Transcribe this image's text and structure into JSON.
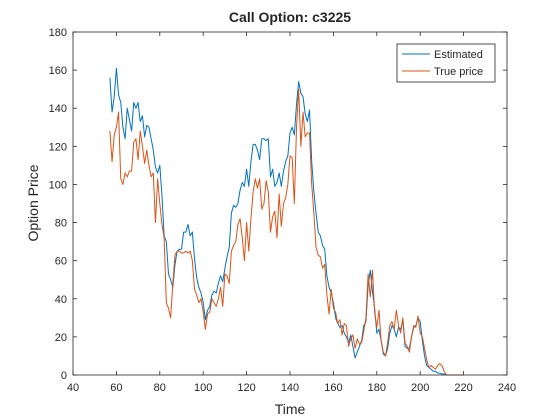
{
  "chart_data": {
    "type": "line",
    "title": "Call Option: c3225",
    "xlabel": "Time",
    "ylabel": "Option Price",
    "xlim": [
      40,
      240
    ],
    "ylim": [
      0,
      180
    ],
    "xticks": [
      40,
      60,
      80,
      100,
      120,
      140,
      160,
      180,
      200,
      220,
      240
    ],
    "yticks": [
      0,
      20,
      40,
      60,
      80,
      100,
      120,
      140,
      160,
      180
    ],
    "grid": false,
    "legend_position": "top-right",
    "series": [
      {
        "name": "Estimated",
        "color": "#0072BD",
        "points": [
          [
            57,
            156
          ],
          [
            58,
            138
          ],
          [
            59,
            146
          ],
          [
            60,
            161
          ],
          [
            61,
            147
          ],
          [
            62,
            143
          ],
          [
            63,
            130
          ],
          [
            64,
            124
          ],
          [
            65,
            140
          ],
          [
            66,
            134
          ],
          [
            67,
            128
          ],
          [
            68,
            143
          ],
          [
            69,
            140
          ],
          [
            70,
            143
          ],
          [
            71,
            133
          ],
          [
            72,
            136
          ],
          [
            73,
            125
          ],
          [
            74,
            131
          ],
          [
            75,
            130
          ],
          [
            76,
            124
          ],
          [
            77,
            118
          ],
          [
            78,
            109
          ],
          [
            79,
            106
          ],
          [
            80,
            110
          ],
          [
            81,
            94
          ],
          [
            82,
            73
          ],
          [
            83,
            70
          ],
          [
            84,
            53
          ],
          [
            85,
            50
          ],
          [
            86,
            46
          ],
          [
            87,
            58
          ],
          [
            88,
            65
          ],
          [
            89,
            66
          ],
          [
            90,
            66
          ],
          [
            91,
            75
          ],
          [
            92,
            75
          ],
          [
            93,
            79
          ],
          [
            94,
            73
          ],
          [
            95,
            75
          ],
          [
            96,
            61
          ],
          [
            97,
            51
          ],
          [
            98,
            46
          ],
          [
            99,
            43
          ],
          [
            100,
            38
          ],
          [
            101,
            29
          ],
          [
            102,
            34
          ],
          [
            103,
            36
          ],
          [
            104,
            42
          ],
          [
            105,
            44
          ],
          [
            106,
            43
          ],
          [
            107,
            48
          ],
          [
            108,
            52
          ],
          [
            109,
            49
          ],
          [
            110,
            56
          ],
          [
            111,
            62
          ],
          [
            112,
            67
          ],
          [
            113,
            85
          ],
          [
            114,
            89
          ],
          [
            115,
            88
          ],
          [
            116,
            90
          ],
          [
            117,
            97
          ],
          [
            118,
            101
          ],
          [
            119,
            99
          ],
          [
            120,
            108
          ],
          [
            121,
            99
          ],
          [
            122,
            112
          ],
          [
            123,
            121
          ],
          [
            124,
            121
          ],
          [
            125,
            118
          ],
          [
            126,
            113
          ],
          [
            127,
            124
          ],
          [
            128,
            124
          ],
          [
            129,
            123
          ],
          [
            130,
            124
          ],
          [
            131,
            104
          ],
          [
            132,
            108
          ],
          [
            133,
            99
          ],
          [
            134,
            101
          ],
          [
            135,
            106
          ],
          [
            136,
            99
          ],
          [
            137,
            107
          ],
          [
            138,
            112
          ],
          [
            139,
            115
          ],
          [
            140,
            127
          ],
          [
            141,
            130
          ],
          [
            142,
            126
          ],
          [
            143,
            142
          ],
          [
            144,
            154
          ],
          [
            145,
            148
          ],
          [
            146,
            146
          ],
          [
            147,
            137
          ],
          [
            148,
            133
          ],
          [
            149,
            139
          ],
          [
            150,
            112
          ],
          [
            151,
            96
          ],
          [
            152,
            85
          ],
          [
            153,
            75
          ],
          [
            154,
            73
          ],
          [
            155,
            68
          ],
          [
            156,
            66
          ],
          [
            157,
            52
          ],
          [
            158,
            46
          ],
          [
            159,
            43
          ],
          [
            160,
            38
          ],
          [
            161,
            30
          ],
          [
            162,
            27
          ],
          [
            163,
            25
          ],
          [
            164,
            26
          ],
          [
            165,
            22
          ],
          [
            166,
            20
          ],
          [
            167,
            17
          ],
          [
            168,
            21
          ],
          [
            169,
            15
          ],
          [
            170,
            9
          ],
          [
            171,
            12
          ],
          [
            172,
            15
          ],
          [
            173,
            18
          ],
          [
            174,
            26
          ],
          [
            175,
            28
          ],
          [
            176,
            47
          ],
          [
            177,
            55
          ],
          [
            178,
            44
          ],
          [
            179,
            35
          ],
          [
            180,
            22
          ],
          [
            181,
            24
          ],
          [
            182,
            18
          ],
          [
            183,
            11
          ],
          [
            184,
            10
          ],
          [
            185,
            14
          ],
          [
            186,
            22
          ],
          [
            187,
            26
          ],
          [
            188,
            24
          ],
          [
            189,
            20
          ],
          [
            190,
            25
          ],
          [
            191,
            24
          ],
          [
            192,
            29
          ],
          [
            193,
            15
          ],
          [
            194,
            14
          ],
          [
            195,
            14
          ],
          [
            196,
            20
          ],
          [
            197,
            25
          ],
          [
            198,
            26
          ],
          [
            199,
            30
          ],
          [
            200,
            28
          ],
          [
            201,
            18
          ],
          [
            202,
            10
          ],
          [
            203,
            5
          ],
          [
            204,
            4
          ],
          [
            205,
            3
          ],
          [
            206,
            2
          ],
          [
            207,
            2
          ],
          [
            208,
            1
          ],
          [
            209,
            1
          ],
          [
            210,
            0.5
          ],
          [
            211,
            0.5
          ],
          [
            212,
            0
          ],
          [
            213,
            0
          ]
        ]
      },
      {
        "name": "True price",
        "color": "#D95319",
        "points": [
          [
            57,
            128
          ],
          [
            58,
            112
          ],
          [
            59,
            126
          ],
          [
            60,
            130
          ],
          [
            61,
            138
          ],
          [
            62,
            103
          ],
          [
            63,
            100
          ],
          [
            64,
            106
          ],
          [
            65,
            104
          ],
          [
            66,
            107
          ],
          [
            67,
            107
          ],
          [
            68,
            122
          ],
          [
            69,
            124
          ],
          [
            70,
            113
          ],
          [
            71,
            128
          ],
          [
            72,
            120
          ],
          [
            73,
            111
          ],
          [
            74,
            118
          ],
          [
            75,
            110
          ],
          [
            76,
            104
          ],
          [
            77,
            106
          ],
          [
            78,
            80
          ],
          [
            79,
            103
          ],
          [
            80,
            90
          ],
          [
            81,
            79
          ],
          [
            82,
            72
          ],
          [
            83,
            38
          ],
          [
            84,
            35
          ],
          [
            85,
            30
          ],
          [
            86,
            48
          ],
          [
            87,
            63
          ],
          [
            88,
            65
          ],
          [
            89,
            65
          ],
          [
            90,
            64
          ],
          [
            91,
            64
          ],
          [
            92,
            65
          ],
          [
            93,
            64
          ],
          [
            94,
            65
          ],
          [
            95,
            60
          ],
          [
            96,
            45
          ],
          [
            97,
            42
          ],
          [
            98,
            38
          ],
          [
            99,
            40
          ],
          [
            100,
            33
          ],
          [
            101,
            24
          ],
          [
            102,
            32
          ],
          [
            103,
            33
          ],
          [
            104,
            40
          ],
          [
            105,
            38
          ],
          [
            106,
            36
          ],
          [
            107,
            40
          ],
          [
            108,
            46
          ],
          [
            109,
            36
          ],
          [
            110,
            53
          ],
          [
            111,
            52
          ],
          [
            112,
            48
          ],
          [
            113,
            65
          ],
          [
            114,
            68
          ],
          [
            115,
            70
          ],
          [
            116,
            79
          ],
          [
            117,
            82
          ],
          [
            118,
            72
          ],
          [
            119,
            60
          ],
          [
            120,
            80
          ],
          [
            121,
            65
          ],
          [
            122,
            82
          ],
          [
            123,
            96
          ],
          [
            124,
            103
          ],
          [
            125,
            98
          ],
          [
            126,
            103
          ],
          [
            127,
            87
          ],
          [
            128,
            90
          ],
          [
            129,
            102
          ],
          [
            130,
            96
          ],
          [
            131,
            75
          ],
          [
            132,
            83
          ],
          [
            133,
            86
          ],
          [
            134,
            72
          ],
          [
            135,
            95
          ],
          [
            136,
            78
          ],
          [
            137,
            90
          ],
          [
            138,
            93
          ],
          [
            139,
            100
          ],
          [
            140,
            115
          ],
          [
            141,
            114
          ],
          [
            142,
            90
          ],
          [
            143,
            130
          ],
          [
            144,
            150
          ],
          [
            145,
            120
          ],
          [
            146,
            138
          ],
          [
            147,
            125
          ],
          [
            148,
            127
          ],
          [
            149,
            127
          ],
          [
            150,
            100
          ],
          [
            151,
            85
          ],
          [
            152,
            67
          ],
          [
            153,
            63
          ],
          [
            154,
            62
          ],
          [
            155,
            56
          ],
          [
            156,
            58
          ],
          [
            157,
            42
          ],
          [
            158,
            32
          ],
          [
            159,
            45
          ],
          [
            160,
            35
          ],
          [
            161,
            33
          ],
          [
            162,
            27
          ],
          [
            163,
            29
          ],
          [
            164,
            21
          ],
          [
            165,
            27
          ],
          [
            166,
            26
          ],
          [
            167,
            15
          ],
          [
            168,
            19
          ],
          [
            169,
            21
          ],
          [
            170,
            14
          ],
          [
            171,
            19
          ],
          [
            172,
            16
          ],
          [
            173,
            17
          ],
          [
            174,
            23
          ],
          [
            175,
            30
          ],
          [
            176,
            53
          ],
          [
            177,
            41
          ],
          [
            178,
            55
          ],
          [
            179,
            33
          ],
          [
            180,
            25
          ],
          [
            181,
            34
          ],
          [
            182,
            18
          ],
          [
            183,
            12
          ],
          [
            184,
            10
          ],
          [
            185,
            17
          ],
          [
            186,
            26
          ],
          [
            187,
            28
          ],
          [
            188,
            24
          ],
          [
            189,
            34
          ],
          [
            190,
            26
          ],
          [
            191,
            22
          ],
          [
            192,
            30
          ],
          [
            193,
            17
          ],
          [
            194,
            15
          ],
          [
            195,
            12
          ],
          [
            196,
            20
          ],
          [
            197,
            26
          ],
          [
            198,
            25
          ],
          [
            199,
            31
          ],
          [
            200,
            22
          ],
          [
            201,
            20
          ],
          [
            202,
            14
          ],
          [
            203,
            8
          ],
          [
            204,
            4
          ],
          [
            205,
            5
          ],
          [
            206,
            4
          ],
          [
            207,
            3
          ],
          [
            208,
            5
          ],
          [
            209,
            6
          ],
          [
            210,
            5
          ],
          [
            211,
            2
          ],
          [
            212,
            0
          ],
          [
            213,
            0
          ],
          [
            214,
            0
          ],
          [
            215,
            0
          ],
          [
            216,
            0
          ],
          [
            217,
            0
          ],
          [
            218,
            0
          ],
          [
            219,
            0
          ],
          [
            220,
            0
          ]
        ]
      }
    ]
  }
}
